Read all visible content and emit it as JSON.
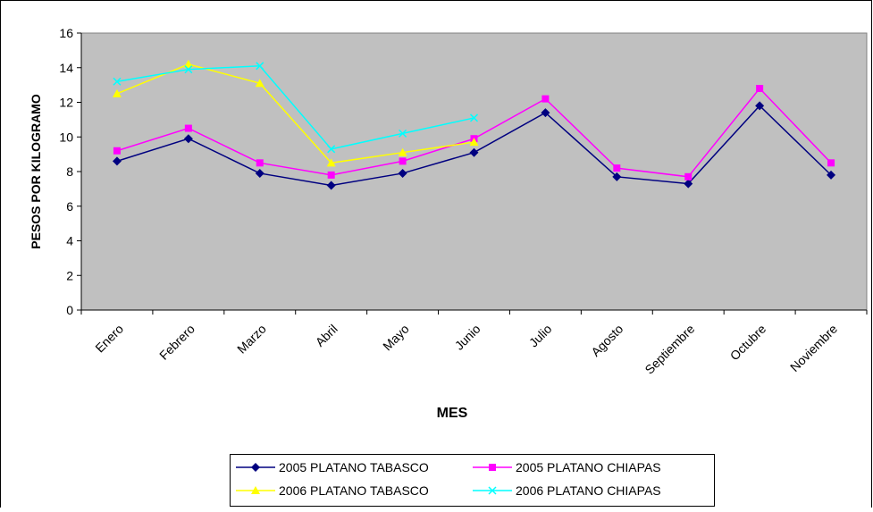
{
  "chart_data": {
    "type": "line",
    "x_label": "MES",
    "y_label": "PESOS POR KILOGRAMO",
    "categories": [
      "Enero",
      "Febrero",
      "Marzo",
      "Abril",
      "Mayo",
      "Junio",
      "Julio",
      "Agosto",
      "Septiembre",
      "Octubre",
      "Noviembre"
    ],
    "series": [
      {
        "name": "2005 PLATANO TABASCO",
        "color": "#000080",
        "marker": "diamond",
        "values": [
          8.6,
          9.9,
          7.9,
          7.2,
          7.9,
          9.1,
          11.4,
          7.7,
          7.3,
          11.8,
          7.8
        ]
      },
      {
        "name": "2005 PLATANO CHIAPAS",
        "color": "#ff00ff",
        "marker": "square",
        "values": [
          9.2,
          10.5,
          8.5,
          7.8,
          8.6,
          9.9,
          12.2,
          8.2,
          7.7,
          12.8,
          8.5
        ]
      },
      {
        "name": "2006 PLATANO TABASCO",
        "color": "#ffff00",
        "marker": "triangle",
        "values": [
          12.5,
          14.2,
          13.1,
          8.5,
          9.1,
          9.7,
          null,
          null,
          null,
          null,
          null
        ]
      },
      {
        "name": "2006 PLATANO CHIAPAS",
        "color": "#00ffff",
        "marker": "x",
        "values": [
          13.2,
          13.9,
          14.1,
          9.3,
          10.2,
          11.1,
          null,
          null,
          null,
          null,
          null
        ]
      }
    ],
    "ylim": [
      0,
      16
    ],
    "yticks": [
      0,
      2,
      4,
      6,
      8,
      10,
      12,
      14,
      16
    ],
    "grid": false,
    "plot_background": "#c0c0c0",
    "legend": "bottom"
  }
}
